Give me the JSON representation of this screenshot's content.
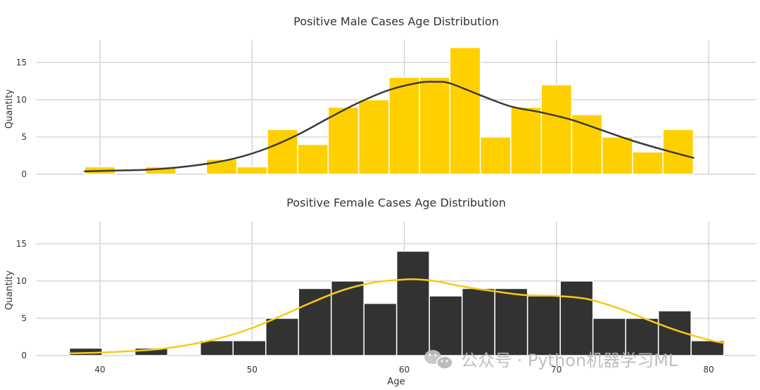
{
  "chart_data": [
    {
      "type": "bar",
      "title": "Positive Male Cases Age Distribution",
      "xlabel": "",
      "ylabel": "Quantity",
      "xlim": [
        36,
        82
      ],
      "ylim": [
        0,
        18
      ],
      "x_ticks": [
        40,
        50,
        60,
        70,
        80
      ],
      "y_ticks": [
        0,
        5,
        10,
        15
      ],
      "grid": true,
      "bar_color": "#ffd000",
      "kde_color": "#3a3a3a",
      "bins": [
        {
          "x0": 39.0,
          "x1": 41.0,
          "value": 1
        },
        {
          "x0": 43.0,
          "x1": 45.0,
          "value": 1
        },
        {
          "x0": 47.0,
          "x1": 49.0,
          "value": 2
        },
        {
          "x0": 49.0,
          "x1": 51.0,
          "value": 1
        },
        {
          "x0": 51.0,
          "x1": 53.0,
          "value": 6
        },
        {
          "x0": 53.0,
          "x1": 55.0,
          "value": 4
        },
        {
          "x0": 55.0,
          "x1": 57.0,
          "value": 9
        },
        {
          "x0": 57.0,
          "x1": 59.0,
          "value": 10
        },
        {
          "x0": 59.0,
          "x1": 61.0,
          "value": 13
        },
        {
          "x0": 61.0,
          "x1": 63.0,
          "value": 13
        },
        {
          "x0": 63.0,
          "x1": 65.0,
          "value": 17
        },
        {
          "x0": 65.0,
          "x1": 67.0,
          "value": 5
        },
        {
          "x0": 67.0,
          "x1": 69.0,
          "value": 9
        },
        {
          "x0": 69.0,
          "x1": 71.0,
          "value": 12
        },
        {
          "x0": 71.0,
          "x1": 73.0,
          "value": 8
        },
        {
          "x0": 73.0,
          "x1": 75.0,
          "value": 5
        },
        {
          "x0": 75.0,
          "x1": 77.0,
          "value": 3
        },
        {
          "x0": 77.0,
          "x1": 79.0,
          "value": 6
        }
      ],
      "kde": {
        "x": [
          39,
          41,
          43,
          45,
          47,
          49,
          51,
          53,
          55,
          57,
          59,
          61,
          62,
          63,
          65,
          67,
          69,
          71,
          73,
          75,
          77,
          79
        ],
        "y": [
          0.4,
          0.5,
          0.6,
          0.9,
          1.4,
          2.2,
          3.5,
          5.3,
          7.5,
          9.6,
          11.3,
          12.3,
          12.4,
          12.2,
          10.6,
          9.1,
          8.3,
          7.3,
          5.9,
          4.5,
          3.3,
          2.2
        ]
      }
    },
    {
      "type": "bar",
      "title": "Positive Female Cases Age Distribution",
      "xlabel": "Age",
      "ylabel": "Quantity",
      "xlim": [
        36,
        82
      ],
      "ylim": [
        0,
        18
      ],
      "x_ticks": [
        40,
        50,
        60,
        70,
        80
      ],
      "y_ticks": [
        0,
        5,
        10,
        15
      ],
      "grid": true,
      "bar_color": "#323331",
      "kde_color": "#f5cc14",
      "bins": [
        {
          "x0": 38.0,
          "x1": 40.15,
          "value": 1
        },
        {
          "x0": 42.3,
          "x1": 44.45,
          "value": 1
        },
        {
          "x0": 46.6,
          "x1": 48.75,
          "value": 2
        },
        {
          "x0": 48.75,
          "x1": 50.9,
          "value": 2
        },
        {
          "x0": 50.9,
          "x1": 53.05,
          "value": 5
        },
        {
          "x0": 53.05,
          "x1": 55.2,
          "value": 9
        },
        {
          "x0": 55.2,
          "x1": 57.35,
          "value": 10
        },
        {
          "x0": 57.35,
          "x1": 59.5,
          "value": 7
        },
        {
          "x0": 59.5,
          "x1": 61.65,
          "value": 14
        },
        {
          "x0": 61.65,
          "x1": 63.8,
          "value": 8
        },
        {
          "x0": 63.8,
          "x1": 65.95,
          "value": 9
        },
        {
          "x0": 65.95,
          "x1": 68.1,
          "value": 9
        },
        {
          "x0": 68.1,
          "x1": 70.25,
          "value": 8
        },
        {
          "x0": 70.25,
          "x1": 72.4,
          "value": 10
        },
        {
          "x0": 72.4,
          "x1": 74.55,
          "value": 5
        },
        {
          "x0": 74.55,
          "x1": 76.7,
          "value": 5
        },
        {
          "x0": 76.7,
          "x1": 78.85,
          "value": 6
        },
        {
          "x0": 78.85,
          "x1": 81.0,
          "value": 2
        }
      ],
      "kde": {
        "x": [
          38,
          40,
          42,
          44,
          46,
          48,
          50,
          52,
          54,
          56,
          58,
          60,
          61,
          62,
          64,
          66,
          68,
          70,
          72,
          74,
          76,
          78,
          80,
          81
        ],
        "y": [
          0.3,
          0.4,
          0.6,
          0.9,
          1.5,
          2.4,
          3.7,
          5.4,
          7.2,
          8.8,
          9.8,
          10.2,
          10.2,
          10.0,
          9.2,
          8.6,
          8.1,
          8.0,
          7.6,
          6.4,
          4.8,
          3.3,
          2.1,
          1.7
        ]
      }
    }
  ],
  "watermark": {
    "icon": "wechat-icon",
    "text": "公众号 · Python机器学习ML"
  }
}
